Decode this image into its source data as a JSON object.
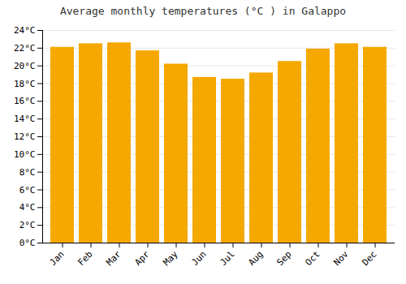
{
  "chart_data": {
    "type": "bar",
    "title": "Average monthly temperatures (°C ) in Galappo",
    "categories": [
      "Jan",
      "Feb",
      "Mar",
      "Apr",
      "May",
      "Jun",
      "Jul",
      "Aug",
      "Sep",
      "Oct",
      "Nov",
      "Dec"
    ],
    "values": [
      22.1,
      22.5,
      22.6,
      21.7,
      20.2,
      18.7,
      18.5,
      19.2,
      20.5,
      21.9,
      22.5,
      22.1
    ],
    "color": "#F5A800",
    "ylim": [
      0,
      24
    ],
    "yticks": [
      {
        "value": 0,
        "label": "0°C"
      },
      {
        "value": 2,
        "label": "2°C"
      },
      {
        "value": 4,
        "label": "4°C"
      },
      {
        "value": 6,
        "label": "6°C"
      },
      {
        "value": 8,
        "label": "8°C"
      },
      {
        "value": 10,
        "label": "10°C"
      },
      {
        "value": 12,
        "label": "12°C"
      },
      {
        "value": 14,
        "label": "14°C"
      },
      {
        "value": 16,
        "label": "16°C"
      },
      {
        "value": 18,
        "label": "18°C"
      },
      {
        "value": 20,
        "label": "20°C"
      },
      {
        "value": 22,
        "label": "22°C"
      },
      {
        "value": 24,
        "label": "24°C"
      }
    ],
    "grid": true
  }
}
